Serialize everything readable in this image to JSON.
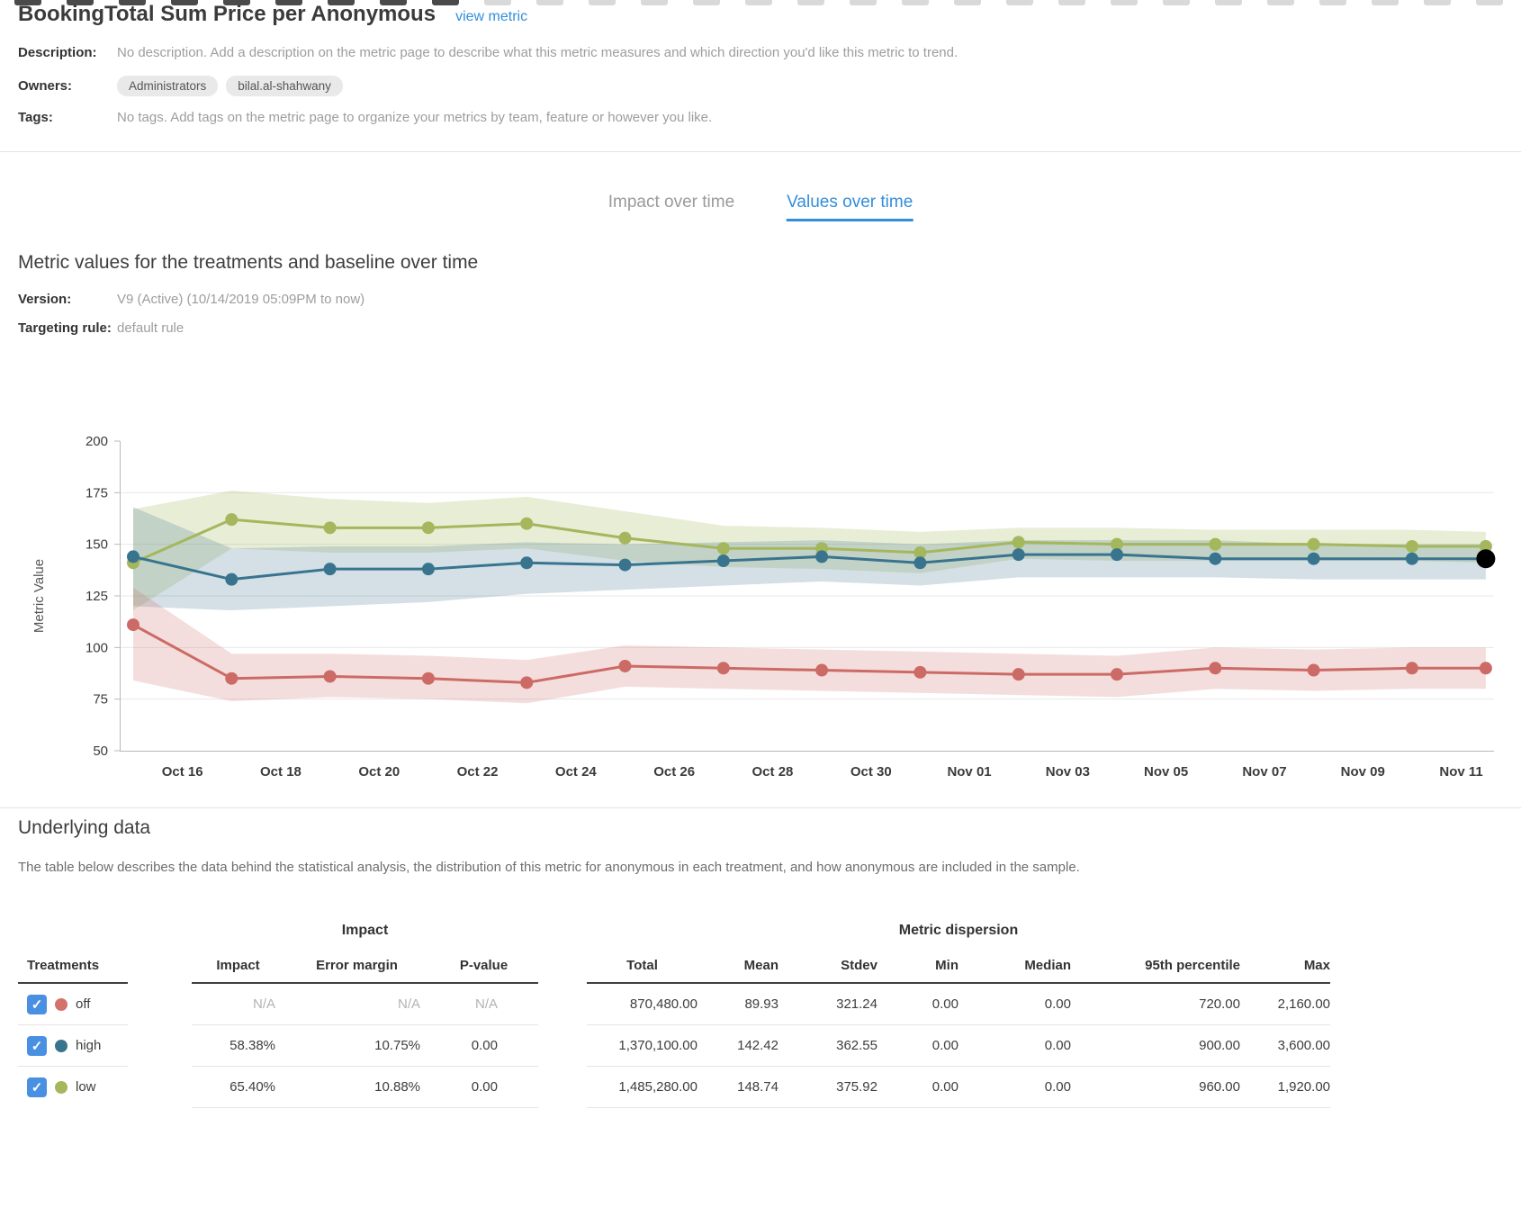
{
  "icons": {
    "check": "✓"
  },
  "decoration": {
    "dash_dark": "#4a4a4a",
    "dash_light": "#d9d9d9",
    "dash_width": 30,
    "dash_period": 58,
    "dark_until": 520
  },
  "page": {
    "title": "BookingTotal Sum Price per Anonymous",
    "view_metric_label": "view metric"
  },
  "meta": {
    "description_label": "Description:",
    "description": "No description. Add a description on the metric page to describe what this metric measures and which direction you'd like this metric to trend.",
    "owners_label": "Owners:",
    "owners": [
      "Administrators",
      "bilal.al-shahwany"
    ],
    "tags_label": "Tags:",
    "tags": "No tags. Add tags on the metric page to organize your metrics by team, feature or however you like."
  },
  "tabs": [
    {
      "label": "Impact over time",
      "active": false
    },
    {
      "label": "Values over time",
      "active": true
    }
  ],
  "section": {
    "heading": "Metric values for the treatments and baseline over time",
    "version_label": "Version:",
    "version": "V9 (Active) (10/14/2019 05:09PM to now)",
    "targeting_label": "Targeting rule:",
    "targeting": "default rule"
  },
  "chart_data": {
    "type": "line",
    "title": "",
    "xlabel": "",
    "ylabel": "Metric Value",
    "ylim": [
      50,
      200
    ],
    "yticks": [
      50,
      75,
      100,
      125,
      150,
      175,
      200
    ],
    "grid": true,
    "legend_position": "table-below",
    "x_tick_labels": [
      "Oct 16",
      "Oct 18",
      "Oct 20",
      "Oct 22",
      "Oct 24",
      "Oct 26",
      "Oct 28",
      "Oct 30",
      "Nov 01",
      "Nov 03",
      "Nov 05",
      "Nov 07",
      "Nov 09",
      "Nov 11"
    ],
    "x_tick_days": [
      1,
      3,
      5,
      7,
      9,
      11,
      13,
      15,
      17,
      19,
      21,
      23,
      25,
      27
    ],
    "point_days": [
      0,
      2,
      4,
      6,
      8,
      10,
      12,
      14,
      16,
      18,
      20,
      22,
      24,
      26,
      27.5
    ],
    "series": [
      {
        "name": "low",
        "color": "#a4b75d",
        "band_color": "rgba(164,183,93,0.25)",
        "values": [
          141,
          162,
          158,
          158,
          160,
          153,
          148,
          148,
          146,
          151,
          150,
          150,
          150,
          149,
          149
        ],
        "upper": [
          167,
          176,
          172,
          170,
          173,
          166,
          159,
          158,
          156,
          158,
          158,
          157,
          157,
          157,
          156
        ],
        "lower": [
          118,
          148,
          146,
          146,
          148,
          142,
          139,
          138,
          136,
          143,
          142,
          142,
          142,
          142,
          141
        ]
      },
      {
        "name": "high",
        "color": "#39748e",
        "band_color": "rgba(57,116,142,0.22)",
        "values": [
          144,
          133,
          138,
          138,
          141,
          140,
          142,
          144,
          141,
          145,
          145,
          143,
          143,
          143,
          143
        ],
        "upper": [
          168,
          148,
          149,
          149,
          151,
          150,
          151,
          152,
          150,
          152,
          152,
          152,
          150,
          150,
          150
        ],
        "lower": [
          120,
          118,
          120,
          122,
          126,
          128,
          130,
          132,
          130,
          134,
          134,
          134,
          133,
          133,
          133
        ]
      },
      {
        "name": "off",
        "color": "#cc6a65",
        "band_color": "rgba(204,106,101,0.22)",
        "values": [
          111,
          85,
          86,
          85,
          83,
          91,
          90,
          89,
          88,
          87,
          87,
          90,
          89,
          90,
          90
        ],
        "upper": [
          129,
          97,
          97,
          96,
          94,
          101,
          100,
          99,
          98,
          97,
          96,
          100,
          99,
          100,
          100
        ],
        "lower": [
          84,
          74,
          76,
          75,
          73,
          81,
          80,
          79,
          78,
          77,
          76,
          80,
          79,
          80,
          80
        ]
      }
    ],
    "highlight": {
      "series": "high",
      "point_index": 14,
      "color": "#000000"
    }
  },
  "underlying": {
    "heading": "Underlying data",
    "description": "The table below describes the data behind the statistical analysis, the distribution of this metric for anonymous in each treatment, and how anonymous are included in the sample.",
    "group_headers": {
      "impact": "Impact",
      "dispersion": "Metric dispersion"
    },
    "columns": {
      "treatments": "Treatments",
      "impact": "Impact",
      "error_margin": "Error margin",
      "p_value": "P-value",
      "total": "Total",
      "mean": "Mean",
      "stdev": "Stdev",
      "min": "Min",
      "median": "Median",
      "p95": "95th percentile",
      "max": "Max"
    },
    "rows": [
      {
        "treatment": "off",
        "checked": true,
        "color": "#d3726d",
        "na": true,
        "impact": "N/A",
        "error_margin": "N/A",
        "p_value": "N/A",
        "total": "870,480.00",
        "mean": "89.93",
        "stdev": "321.24",
        "min": "0.00",
        "median": "0.00",
        "p95": "720.00",
        "max": "2,160.00"
      },
      {
        "treatment": "high",
        "checked": true,
        "color": "#39748e",
        "na": false,
        "impact": "58.38%",
        "error_margin": "10.75%",
        "p_value": "0.00",
        "total": "1,370,100.00",
        "mean": "142.42",
        "stdev": "362.55",
        "min": "0.00",
        "median": "0.00",
        "p95": "900.00",
        "max": "3,600.00"
      },
      {
        "treatment": "low",
        "checked": true,
        "color": "#a4b75d",
        "na": false,
        "impact": "65.40%",
        "error_margin": "10.88%",
        "p_value": "0.00",
        "total": "1,485,280.00",
        "mean": "148.74",
        "stdev": "375.92",
        "min": "0.00",
        "median": "0.00",
        "p95": "960.00",
        "max": "1,920.00"
      }
    ]
  }
}
